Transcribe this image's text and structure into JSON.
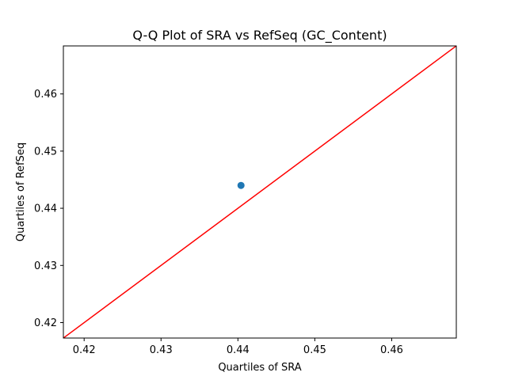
{
  "chart_data": {
    "type": "scatter",
    "title": "Q-Q Plot of SRA vs RefSeq (GC_Content)",
    "xlabel": "Quartiles of SRA",
    "ylabel": "Quartiles of RefSeq",
    "xlim": [
      0.4173,
      0.4684
    ],
    "ylim": [
      0.4173,
      0.4684
    ],
    "x_ticks": [
      0.42,
      0.43,
      0.44,
      0.45,
      0.46
    ],
    "x_tick_labels": [
      "0.42",
      "0.43",
      "0.44",
      "0.45",
      "0.46"
    ],
    "y_ticks": [
      0.42,
      0.43,
      0.44,
      0.45,
      0.46
    ],
    "y_tick_labels": [
      "0.42",
      "0.43",
      "0.44",
      "0.45",
      "0.46"
    ],
    "grid": false,
    "series": [
      {
        "type": "scatter",
        "x": [
          0.4404
        ],
        "y": [
          0.444
        ],
        "color": "#1f77b4"
      }
    ],
    "reference_line": {
      "type": "line",
      "x": [
        0.4173,
        0.4684
      ],
      "y": [
        0.4173,
        0.4684
      ],
      "color": "#ff0000"
    }
  }
}
